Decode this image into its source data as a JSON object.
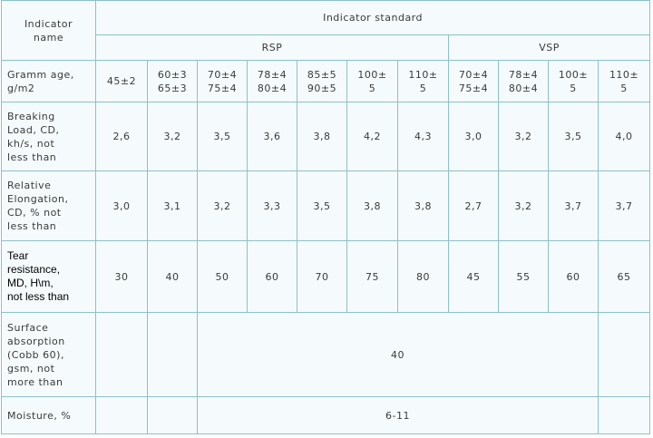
{
  "header": {
    "row_label": "Indicator\nname",
    "group_label": "Indicator standard",
    "groups": [
      "RSP",
      "VSP"
    ]
  },
  "rows": [
    {
      "label": "Gramm age,\ng/m2",
      "cells": [
        "45±2",
        "60±3\n65±3",
        "70±4\n75±4",
        "78±4\n80±4",
        "85±5\n90±5",
        "100±\n5",
        "110±\n5",
        "70±4\n75±4",
        "78±4\n80±4",
        "100±\n5",
        "110±\n5"
      ]
    },
    {
      "label": "Breaking\nLoad, CD,\nkh/s, not\nless than",
      "cells": [
        "2,6",
        "3,2",
        "3,5",
        "3,6",
        "3,8",
        "4,2",
        "4,3",
        "3,0",
        "3,2",
        "3,5",
        "4,0"
      ]
    },
    {
      "label": "Relative\nElongation,\nCD, % not\nless than",
      "cells": [
        "3,0",
        "3,1",
        "3,2",
        "3,3",
        "3,5",
        "3,8",
        "3,8",
        "2,7",
        "3,2",
        "3,7",
        "3,7"
      ]
    },
    {
      "label": "Tear\nresistance,\nMD, H\\m,\nnot less than",
      "cells": [
        "30",
        "40",
        "50",
        "60",
        "70",
        "75",
        "80",
        "45",
        "55",
        "60",
        "65"
      ]
    },
    {
      "label": "Surface\nabsorption\n(Cobb 60),\ngsm, not\nmore than",
      "merged": "40"
    },
    {
      "label": "Moisture, %",
      "merged": "6-11"
    }
  ]
}
